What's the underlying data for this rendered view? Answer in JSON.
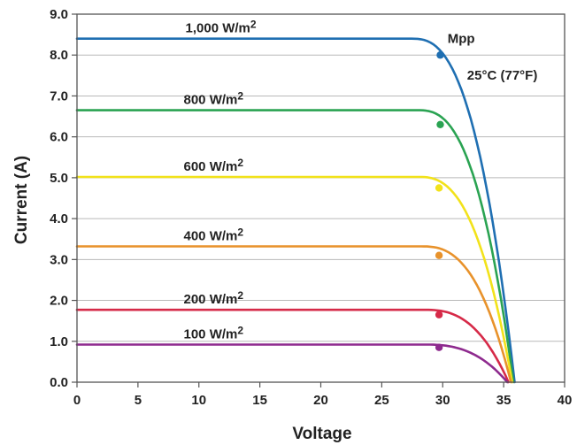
{
  "chart_data": {
    "type": "line",
    "xlabel": "Voltage",
    "ylabel": "Current (A)",
    "xlim": [
      0,
      40
    ],
    "ylim": [
      0,
      9
    ],
    "x_ticks": [
      "0",
      "5",
      "10",
      "15",
      "20",
      "25",
      "30",
      "35",
      "40"
    ],
    "y_ticks": [
      "0.0",
      "1.0",
      "2.0",
      "3.0",
      "4.0",
      "5.0",
      "6.0",
      "7.0",
      "8.0",
      "9.0"
    ],
    "grid": "horizontal",
    "annotations": [
      {
        "text": "Mpp",
        "x": 30.4,
        "y": 8.3
      },
      {
        "text": "25°C (77°F)",
        "x": 32.0,
        "y": 7.4
      }
    ],
    "series": [
      {
        "name": "1,000 W/m2",
        "label_main": "1,000 W/m",
        "label_sup": "2",
        "color": "#1f6fb2",
        "isc": 8.4,
        "voc": 35.9,
        "knee": 27.5,
        "mpp": [
          29.8,
          8.0
        ]
      },
      {
        "name": "800 W/m2",
        "label_main": "800 W/m",
        "label_sup": "2",
        "color": "#2aa352",
        "isc": 6.65,
        "voc": 35.8,
        "knee": 28.0,
        "mpp": [
          29.8,
          6.3
        ]
      },
      {
        "name": "600 W/m2",
        "label_main": "600 W/m",
        "label_sup": "2",
        "color": "#f2e21a",
        "isc": 5.02,
        "voc": 35.7,
        "knee": 28.0,
        "mpp": [
          29.7,
          4.75
        ]
      },
      {
        "name": "400 W/m2",
        "label_main": "400 W/m",
        "label_sup": "2",
        "color": "#e8922b",
        "isc": 3.32,
        "voc": 35.6,
        "knee": 28.3,
        "mpp": [
          29.7,
          3.1
        ]
      },
      {
        "name": "200 W/m2",
        "label_main": "200 W/m",
        "label_sup": "2",
        "color": "#d62a48",
        "isc": 1.77,
        "voc": 35.4,
        "knee": 28.5,
        "mpp": [
          29.7,
          1.65
        ]
      },
      {
        "name": "100 W/m2",
        "label_main": "100 W/m",
        "label_sup": "2",
        "color": "#8e2a8e",
        "isc": 0.92,
        "voc": 35.3,
        "knee": 28.5,
        "mpp": [
          29.7,
          0.85
        ]
      }
    ]
  }
}
